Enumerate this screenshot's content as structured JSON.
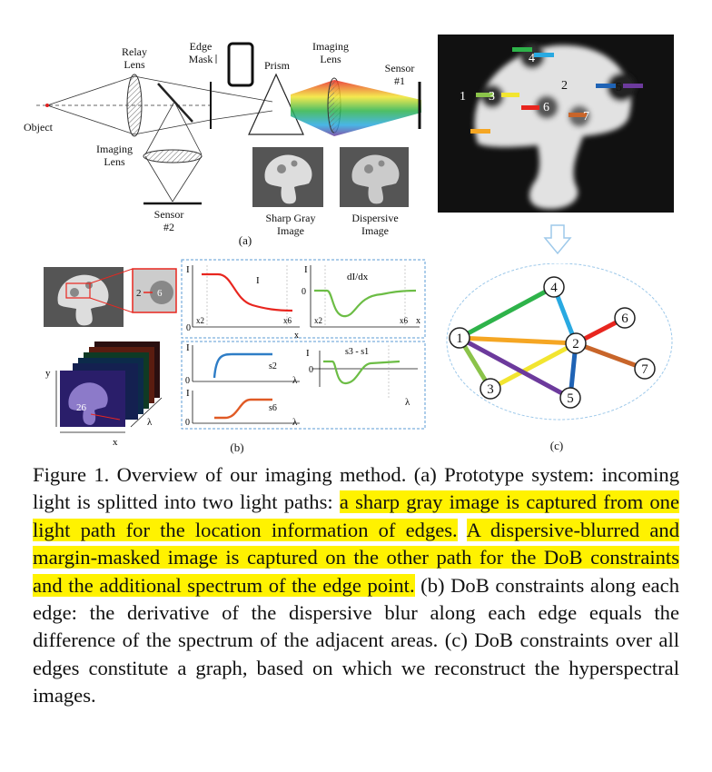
{
  "panel_a": {
    "object": "Object",
    "relay_lens": [
      "Relay",
      "Lens"
    ],
    "edge_mask": [
      "Edge",
      "Mask"
    ],
    "prism": "Prism",
    "imaging_lens_top": [
      "Imaging",
      "Lens"
    ],
    "sensor1": [
      "Sensor",
      "#1"
    ],
    "imaging_lens_bottom": [
      "Imaging",
      "Lens"
    ],
    "sensor2": [
      "Sensor",
      "#2"
    ],
    "sharp_image": [
      "Sharp Gray",
      "Image"
    ],
    "dispersive_image": [
      "Dispersive",
      "Image"
    ],
    "label": "(a)"
  },
  "mushroom_regions": [
    "1",
    "2",
    "3",
    "4",
    "5",
    "6",
    "7"
  ],
  "panel_b": {
    "inset": [
      "2",
      "6"
    ],
    "cube_label": "26",
    "cube_axes": {
      "y": "y",
      "x": "x",
      "lambda": "λ"
    },
    "plot_I": {
      "ylab": "I",
      "title": "I",
      "origin": "0",
      "x_start": "x2",
      "x_end": "x6",
      "x_axis": "x"
    },
    "plot_dIdx": {
      "ylab": "I",
      "title": "dI/dx",
      "origin": "0",
      "x_start": "x2",
      "x_end": "x6",
      "x_axis": "x"
    },
    "plot_s2": {
      "ylab": "I",
      "origin": "0",
      "series": "s2",
      "x_axis": "λ"
    },
    "plot_s6": {
      "ylab": "I",
      "origin": "0",
      "series": "s6",
      "x_axis": "λ"
    },
    "plot_diff": {
      "ylab": "I",
      "title": "s3 - s1",
      "origin": "0",
      "x_axis": "λ"
    },
    "label": "(b)"
  },
  "panel_c": {
    "nodes": [
      "1",
      "2",
      "3",
      "4",
      "5",
      "6",
      "7"
    ],
    "label": "(c)"
  },
  "colors": {
    "green": "#2eb34a",
    "cyan": "#29a9e1",
    "yellow": "#f2e530",
    "red": "#e8261f",
    "blue": "#1f63b5",
    "purple": "#6c3a9c",
    "orange": "#c8652a",
    "lightgreen": "#8bc34a",
    "gold": "#f5a623"
  },
  "caption": {
    "p1": "Figure 1. Overview of our imaging method. (a) Prototype system: incoming light is splitted into two light paths: ",
    "h1": "a sharp gray image is captured from one light path for the location information of edges.",
    "p2": " ",
    "h2": "A dispersive-blurred and margin-masked image is captured on the other path for the DoB constraints and the additional spectrum of the edge point.",
    "p3": " (b) DoB constraints along each edge: the derivative of the dispersive blur along each edge equals the difference of the spectrum of the adjacent areas. (c) DoB constraints over all edges constitute a graph, based on which we reconstruct the hyperspectral images."
  }
}
